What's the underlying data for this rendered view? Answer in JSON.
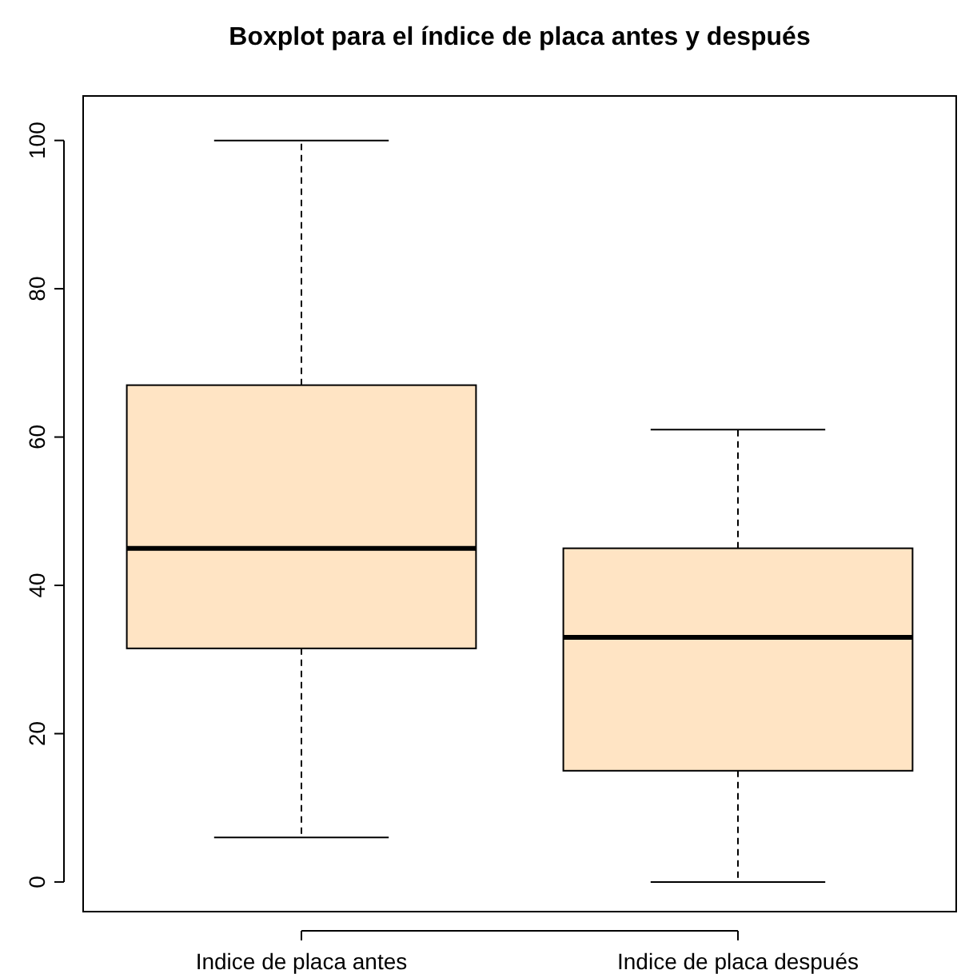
{
  "chart_data": {
    "type": "box",
    "title": "Boxplot para el índice de placa antes y después",
    "categories": [
      "Indice de placa antes",
      "Indice de placa después"
    ],
    "color": "#ffe4c4",
    "boxes": [
      {
        "low": 6,
        "q1": 31.5,
        "median": 45,
        "q3": 67,
        "high": 100
      },
      {
        "low": 0,
        "q1": 15,
        "median": 33,
        "q3": 45,
        "high": 61
      }
    ],
    "ylim": [
      -4,
      106
    ],
    "yticks": [
      0,
      20,
      40,
      60,
      80,
      100
    ],
    "grid": false
  }
}
